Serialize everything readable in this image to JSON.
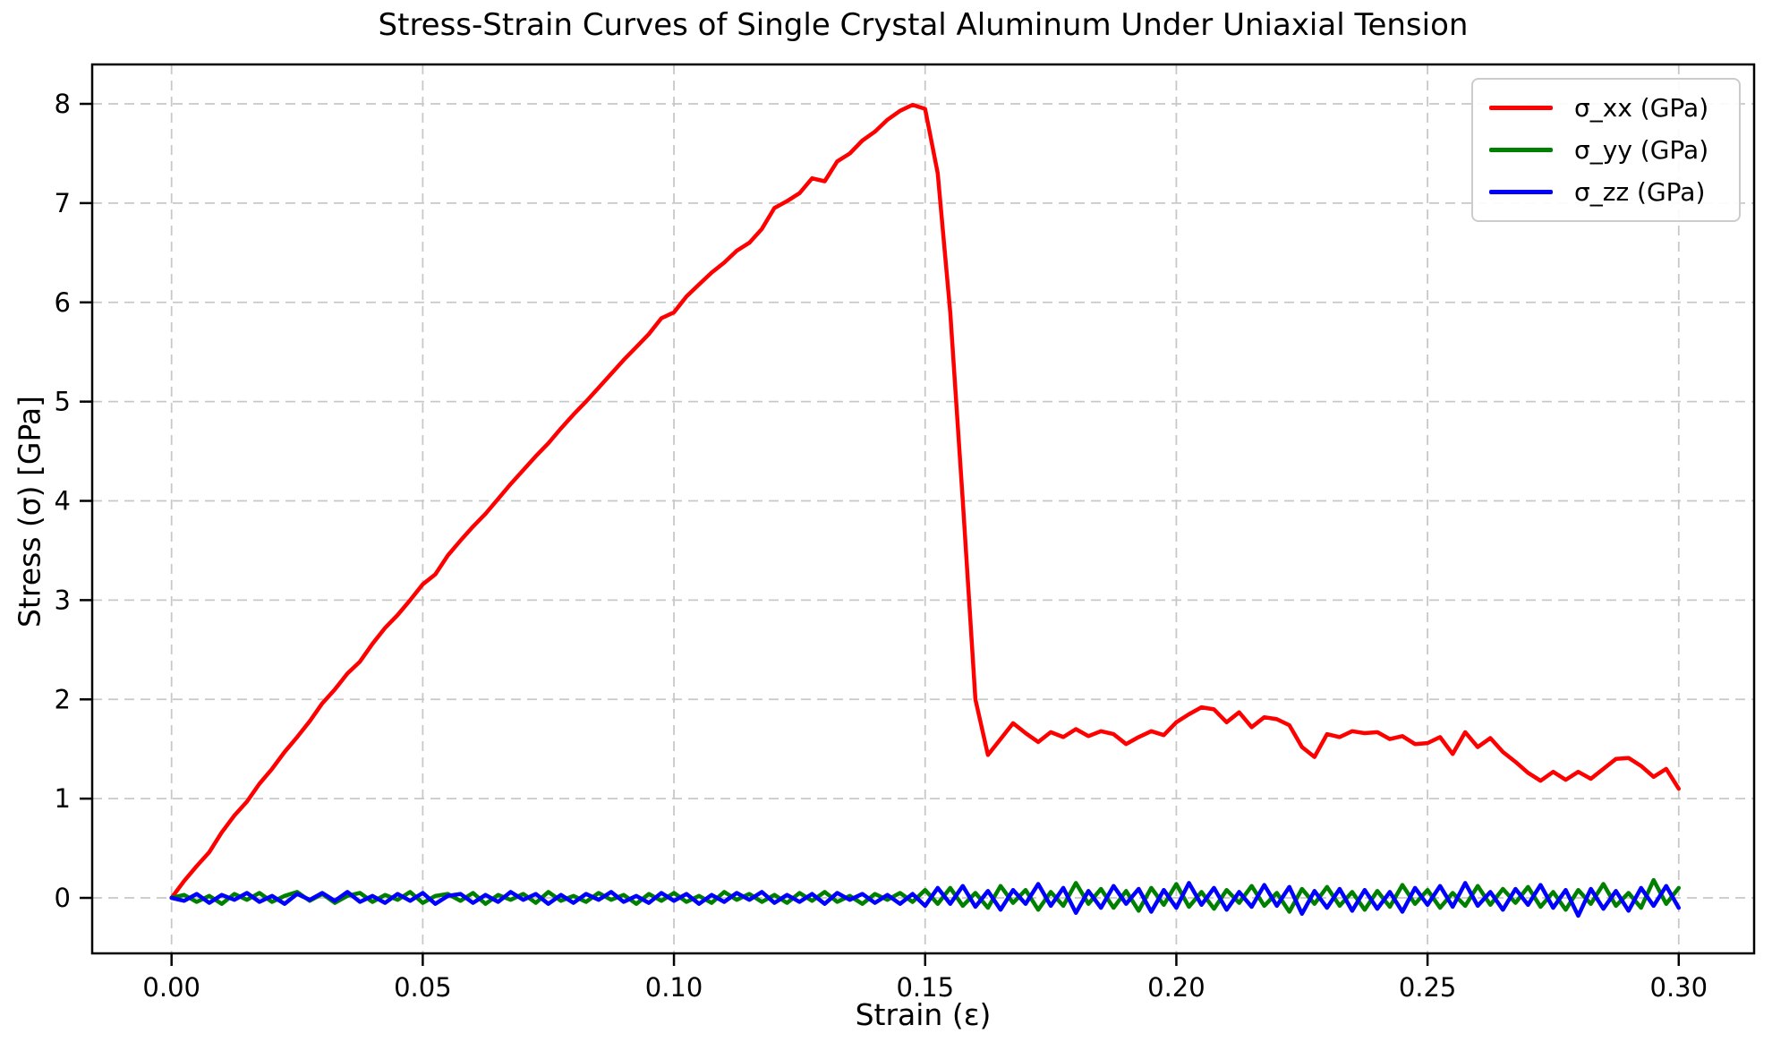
{
  "figure": {
    "background": "#ffffff"
  },
  "chart_data": {
    "type": "line",
    "title": "Stress-Strain Curves of Single Crystal Aluminum Under Uniaxial Tension",
    "xlabel": "Strain (ε)",
    "ylabel": "Stress (σ) [GPa]",
    "xlim": [
      -0.0158,
      0.315
    ],
    "ylim": [
      -0.559,
      8.397
    ],
    "xticks": [
      0.0,
      0.05,
      0.1,
      0.15,
      0.2,
      0.25,
      0.3
    ],
    "xtick_labels": [
      "0.00",
      "0.05",
      "0.10",
      "0.15",
      "0.20",
      "0.25",
      "0.30"
    ],
    "yticks": [
      0,
      1,
      2,
      3,
      4,
      5,
      6,
      7,
      8
    ],
    "ytick_labels": [
      "0",
      "1",
      "2",
      "3",
      "4",
      "5",
      "6",
      "7",
      "8"
    ],
    "grid": true,
    "grid_style": "dashed",
    "grid_color": "#c8c8c8",
    "spine_color": "#000000",
    "legend_position": "upper right",
    "x_start": 0,
    "x_step": 0.0025,
    "series": [
      {
        "id": "sigma-xx",
        "name": "σ_xx (GPa)",
        "color": "#ff0000",
        "values": [
          0.0,
          0.17,
          0.32,
          0.46,
          0.66,
          0.83,
          0.97,
          1.15,
          1.3,
          1.47,
          1.62,
          1.78,
          1.96,
          2.1,
          2.26,
          2.38,
          2.56,
          2.72,
          2.85,
          3.0,
          3.16,
          3.26,
          3.45,
          3.6,
          3.74,
          3.87,
          4.02,
          4.17,
          4.31,
          4.45,
          4.58,
          4.73,
          4.87,
          5.0,
          5.14,
          5.28,
          5.42,
          5.55,
          5.68,
          5.84,
          5.9,
          6.06,
          6.18,
          6.3,
          6.4,
          6.52,
          6.6,
          6.74,
          6.95,
          7.02,
          7.1,
          7.25,
          7.22,
          7.42,
          7.5,
          7.63,
          7.72,
          7.84,
          7.93,
          7.99,
          7.95,
          7.3,
          5.9,
          4.0,
          2.0,
          1.44,
          1.6,
          1.76,
          1.66,
          1.57,
          1.67,
          1.62,
          1.7,
          1.63,
          1.68,
          1.65,
          1.55,
          1.62,
          1.68,
          1.64,
          1.77,
          1.85,
          1.92,
          1.9,
          1.77,
          1.87,
          1.72,
          1.82,
          1.8,
          1.74,
          1.52,
          1.42,
          1.65,
          1.62,
          1.68,
          1.66,
          1.67,
          1.6,
          1.63,
          1.55,
          1.56,
          1.62,
          1.45,
          1.67,
          1.52,
          1.61,
          1.47,
          1.37,
          1.26,
          1.18,
          1.27,
          1.19,
          1.27,
          1.2,
          1.3,
          1.4,
          1.41,
          1.33,
          1.22,
          1.3,
          1.1
        ]
      },
      {
        "id": "sigma-yy",
        "name": "σ_yy (GPa)",
        "color": "#008000",
        "values": [
          0.0,
          0.03,
          -0.04,
          0.02,
          -0.06,
          0.04,
          -0.02,
          0.05,
          -0.04,
          0.02,
          0.06,
          -0.03,
          0.04,
          -0.05,
          0.02,
          0.05,
          -0.04,
          0.03,
          -0.02,
          0.06,
          -0.05,
          0.02,
          0.04,
          -0.03,
          0.05,
          -0.06,
          0.03,
          -0.02,
          0.04,
          -0.05,
          0.06,
          -0.03,
          0.02,
          -0.04,
          0.05,
          -0.02,
          0.03,
          -0.06,
          0.04,
          -0.03,
          0.05,
          -0.04,
          0.02,
          -0.05,
          0.06,
          -0.02,
          0.04,
          -0.04,
          0.03,
          -0.05,
          0.05,
          -0.03,
          0.06,
          -0.04,
          0.02,
          -0.06,
          0.04,
          -0.02,
          0.05,
          -0.04,
          0.08,
          -0.06,
          0.1,
          -0.08,
          0.05,
          -0.1,
          0.12,
          -0.05,
          0.08,
          -0.12,
          0.06,
          -0.08,
          0.15,
          -0.06,
          0.09,
          -0.1,
          0.07,
          -0.13,
          0.1,
          -0.07,
          0.14,
          -0.09,
          0.06,
          -0.11,
          0.08,
          -0.05,
          0.12,
          -0.08,
          0.05,
          -0.14,
          0.09,
          -0.06,
          0.11,
          -0.08,
          0.06,
          -0.12,
          0.07,
          -0.09,
          0.13,
          -0.06,
          0.08,
          -0.1,
          0.05,
          -0.08,
          0.12,
          -0.07,
          0.09,
          -0.05,
          0.11,
          -0.09,
          0.06,
          -0.12,
          0.08,
          -0.06,
          0.14,
          -0.08,
          0.05,
          -0.1,
          0.18,
          -0.06,
          0.1
        ]
      },
      {
        "id": "sigma-zz",
        "name": "σ_zz (GPa)",
        "color": "#0000ff",
        "values": [
          0.0,
          -0.03,
          0.04,
          -0.05,
          0.03,
          -0.02,
          0.05,
          -0.04,
          0.02,
          -0.06,
          0.04,
          -0.02,
          0.05,
          -0.03,
          0.06,
          -0.04,
          0.02,
          -0.05,
          0.04,
          -0.03,
          0.05,
          -0.06,
          0.02,
          0.04,
          -0.05,
          0.03,
          -0.04,
          0.06,
          -0.02,
          0.04,
          -0.06,
          0.03,
          -0.05,
          0.04,
          -0.02,
          0.06,
          -0.04,
          0.02,
          -0.05,
          0.05,
          -0.03,
          0.04,
          -0.06,
          0.03,
          -0.04,
          0.05,
          -0.02,
          0.06,
          -0.05,
          0.03,
          -0.04,
          0.04,
          -0.06,
          0.05,
          -0.02,
          0.04,
          -0.05,
          0.03,
          -0.06,
          0.04,
          -0.08,
          0.1,
          -0.06,
          0.12,
          -0.09,
          0.07,
          -0.12,
          0.08,
          -0.06,
          0.14,
          -0.08,
          0.1,
          -0.15,
          0.07,
          -0.1,
          0.12,
          -0.06,
          0.09,
          -0.14,
          0.08,
          -0.1,
          0.15,
          -0.07,
          0.1,
          -0.12,
          0.06,
          -0.09,
          0.13,
          -0.08,
          0.11,
          -0.16,
          0.07,
          -0.1,
          0.09,
          -0.13,
          0.08,
          -0.11,
          0.06,
          -0.14,
          0.1,
          -0.07,
          0.12,
          -0.09,
          0.15,
          -0.08,
          0.06,
          -0.12,
          0.09,
          -0.07,
          0.13,
          -0.1,
          0.08,
          -0.18,
          0.09,
          -0.11,
          0.07,
          -0.13,
          0.1,
          -0.08,
          0.12,
          -0.1
        ]
      }
    ]
  }
}
